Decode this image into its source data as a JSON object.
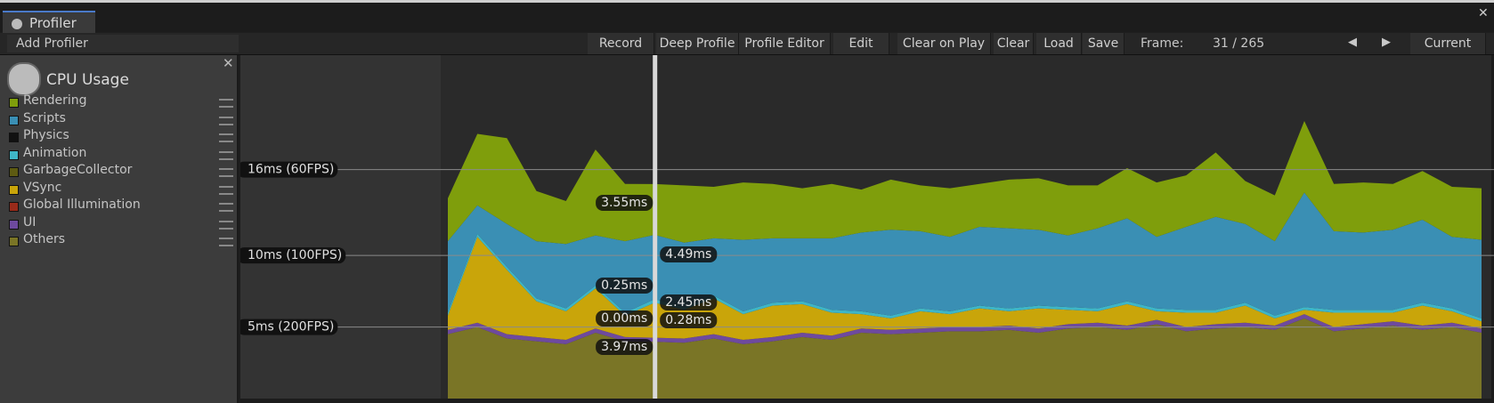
{
  "tab": {
    "title": "Profiler"
  },
  "toolbar": {
    "add_profiler": "Add Profiler",
    "buttons": [
      "Record",
      "Deep Profile",
      "Profile Editor",
      "Edit",
      "Clear on Play",
      "Clear",
      "Load",
      "Save"
    ],
    "frame_label": "Frame:",
    "frame_value": "31 / 265",
    "current": "Current"
  },
  "module": {
    "title": "CPU Usage",
    "legend": [
      {
        "label": "Rendering",
        "color": "#7f9e0c",
        "values": [
          3,
          5,
          6,
          3.5,
          3,
          6,
          4,
          3.55,
          4,
          3.6,
          4,
          3.8,
          3.5,
          3.8,
          3,
          3.5,
          3.2,
          3.4,
          3,
          3.4,
          3.6,
          3.5,
          3,
          3.5,
          3.8,
          3.6,
          4.5,
          3,
          3.2,
          5,
          3.3,
          3.5,
          3.2,
          3.4,
          3.5,
          3.6
        ]
      },
      {
        "label": "Scripts",
        "color": "#3a8fb4",
        "values": [
          5,
          2,
          3,
          4,
          4.5,
          3.5,
          5,
          4.49,
          4.5,
          4,
          5,
          4.5,
          4.4,
          5,
          5.5,
          6,
          5.4,
          5.2,
          5.5,
          5.6,
          5.3,
          5,
          5.6,
          5.8,
          5,
          5.8,
          6.5,
          5.5,
          5.2,
          8,
          5.5,
          5.4,
          5.6,
          5.8,
          5,
          5.5
        ]
      },
      {
        "label": "Physics",
        "color": "#111111"
      },
      {
        "label": "Animation",
        "color": "#3fb6c6",
        "values": [
          0.2,
          0.2,
          0.2,
          0.2,
          0.2,
          0.2,
          0.2,
          0.25,
          0.2,
          0.2,
          0.2,
          0.2,
          0.2,
          0.2,
          0.2,
          0.2,
          0.2,
          0.2,
          0.2,
          0.2,
          0.2,
          0.2,
          0.2,
          0.2,
          0.2,
          0.2,
          0.2,
          0.2,
          0.2,
          0.2,
          0.2,
          0.2,
          0.2,
          0.2,
          0.2,
          0.2
        ]
      },
      {
        "label": "GarbageCollector",
        "color": "#5e5b12"
      },
      {
        "label": "VSync",
        "color": "#c9a50a",
        "values": [
          1,
          6,
          4.5,
          2.5,
          2,
          2.8,
          1.5,
          2.45,
          2,
          2.5,
          1.8,
          2.2,
          2,
          1.6,
          1,
          0.8,
          1.2,
          0.9,
          1.3,
          1,
          1.4,
          1,
          0.8,
          1.5,
          0.6,
          1,
          0.8,
          1.2,
          0.5,
          0.3,
          1,
          0.8,
          0.6,
          1.4,
          0.8,
          0.5
        ]
      },
      {
        "label": "Global Illumination",
        "color": "#9a2b1a"
      },
      {
        "label": "UI",
        "color": "#6e4a9e",
        "values": [
          0.3,
          0.3,
          0.3,
          0.3,
          0.3,
          0.3,
          0.3,
          0.28,
          0.3,
          0.3,
          0.3,
          0.3,
          0.3,
          0.3,
          0.3,
          0.3,
          0.3,
          0.3,
          0.3,
          0.3,
          0.3,
          0.3,
          0.3,
          0.3,
          0.3,
          0.3,
          0.3,
          0.3,
          0.3,
          0.3,
          0.3,
          0.3,
          0.3,
          0.3,
          0.3,
          0.3
        ]
      },
      {
        "label": "Others",
        "color": "#7a7526",
        "values": [
          4.5,
          5,
          4.2,
          4,
          3.8,
          4.6,
          4,
          3.97,
          3.9,
          4.2,
          3.8,
          4,
          4.3,
          4.1,
          4.6,
          4.5,
          4.6,
          4.7,
          4.7,
          4.8,
          4.6,
          4.9,
          5,
          4.8,
          5.2,
          4.7,
          4.9,
          5,
          4.8,
          5.6,
          4.7,
          4.9,
          5.1,
          4.8,
          5,
          4.6
        ]
      }
    ]
  },
  "graph": {
    "ylim": [
      0,
      24
    ],
    "lines": [
      {
        "value": 16,
        "label": "16ms (60FPS)"
      },
      {
        "value": 10,
        "label": "10ms (100FPS)"
      },
      {
        "value": 5,
        "label": "5ms (200FPS)"
      }
    ],
    "selected_labels": [
      "3.55ms",
      "4.49ms",
      "0.25ms",
      "2.45ms",
      "0.00ms",
      "0.28ms",
      "3.97ms"
    ]
  }
}
